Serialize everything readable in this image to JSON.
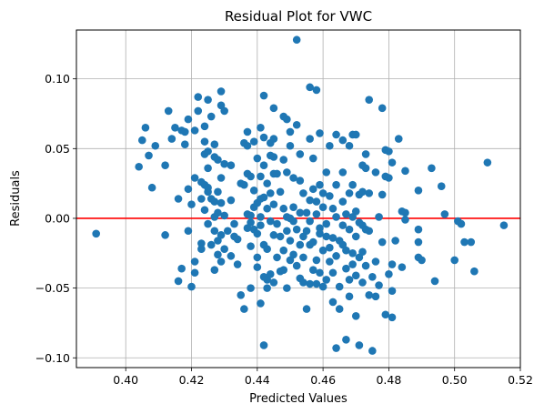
{
  "chart_data": {
    "type": "scatter",
    "title": "Residual Plot for VWC",
    "xlabel": "Predicted Values",
    "ylabel": "Residuals",
    "xlim": [
      0.385,
      0.52
    ],
    "ylim": [
      -0.107,
      0.135
    ],
    "xticks": [
      0.4,
      0.42,
      0.44,
      0.46,
      0.48,
      0.5,
      0.52
    ],
    "xtick_labels": [
      "0.40",
      "0.42",
      "0.44",
      "0.46",
      "0.48",
      "0.50",
      "0.52"
    ],
    "yticks": [
      -0.1,
      -0.05,
      0.0,
      0.05,
      0.1
    ],
    "ytick_labels": [
      "−0.10",
      "−0.05",
      "0.00",
      "0.05",
      "0.10"
    ],
    "grid": true,
    "point_color": "#1f77b4",
    "reference_line": {
      "y": 0.0,
      "color": "#ff0000"
    },
    "series": [
      {
        "points": [
          [
            0.391,
            -0.011
          ],
          [
            0.404,
            0.037
          ],
          [
            0.405,
            0.056
          ],
          [
            0.406,
            0.065
          ],
          [
            0.407,
            0.045
          ],
          [
            0.408,
            0.022
          ],
          [
            0.409,
            0.052
          ],
          [
            0.412,
            0.038
          ],
          [
            0.412,
            -0.012
          ],
          [
            0.413,
            0.077
          ],
          [
            0.414,
            0.057
          ],
          [
            0.415,
            0.065
          ],
          [
            0.416,
            -0.045
          ],
          [
            0.416,
            0.014
          ],
          [
            0.417,
            0.063
          ],
          [
            0.417,
            -0.036
          ],
          [
            0.418,
            0.053
          ],
          [
            0.418,
            0.062
          ],
          [
            0.419,
            0.071
          ],
          [
            0.419,
            0.021
          ],
          [
            0.419,
            -0.009
          ],
          [
            0.42,
            0.01
          ],
          [
            0.42,
            -0.049
          ],
          [
            0.421,
            0.063
          ],
          [
            0.421,
            -0.039
          ],
          [
            0.421,
            -0.031
          ],
          [
            0.421,
            0.029
          ],
          [
            0.422,
            0.087
          ],
          [
            0.422,
            0.077
          ],
          [
            0.423,
            0.026
          ],
          [
            0.423,
            0.014
          ],
          [
            0.423,
            -0.018
          ],
          [
            0.423,
            -0.022
          ],
          [
            0.424,
            0.066
          ],
          [
            0.424,
            0.046
          ],
          [
            0.424,
            0.006
          ],
          [
            0.424,
            0.055
          ],
          [
            0.424,
            0.024
          ],
          [
            0.425,
            0.085
          ],
          [
            0.425,
            0.048
          ],
          [
            0.425,
            0.036
          ],
          [
            0.425,
            0.019
          ],
          [
            0.425,
            -0.004
          ],
          [
            0.425,
            0.022
          ],
          [
            0.426,
            0.073
          ],
          [
            0.426,
            0.014
          ],
          [
            0.426,
            -0.019
          ],
          [
            0.427,
            0.053
          ],
          [
            0.427,
            -0.009
          ],
          [
            0.427,
            -0.037
          ],
          [
            0.427,
            0.044
          ],
          [
            0.427,
            0.012
          ],
          [
            0.427,
            0.001
          ],
          [
            0.428,
            -0.026
          ],
          [
            0.428,
            0.042
          ],
          [
            0.428,
            0.019
          ],
          [
            0.428,
            -0.016
          ],
          [
            0.428,
            0.004
          ],
          [
            0.429,
            0.091
          ],
          [
            0.429,
            0.081
          ],
          [
            0.429,
            0.029
          ],
          [
            0.429,
            -0.031
          ],
          [
            0.429,
            0.011
          ],
          [
            0.429,
            -0.012
          ],
          [
            0.43,
            0.077
          ],
          [
            0.43,
            0.039
          ],
          [
            0.43,
            -0.022
          ],
          [
            0.43,
            0.002
          ],
          [
            0.431,
            -0.009
          ],
          [
            0.432,
            0.038
          ],
          [
            0.432,
            0.013
          ],
          [
            0.432,
            -0.027
          ],
          [
            0.433,
            -0.004
          ],
          [
            0.433,
            -0.013
          ],
          [
            0.434,
            -0.033
          ],
          [
            0.434,
            -0.015
          ],
          [
            0.435,
            0.025
          ],
          [
            0.435,
            -0.055
          ],
          [
            0.436,
            0.054
          ],
          [
            0.436,
            -0.065
          ],
          [
            0.436,
            0.024
          ],
          [
            0.437,
            -0.007
          ],
          [
            0.437,
            0.062
          ],
          [
            0.437,
            0.052
          ],
          [
            0.437,
            0.032
          ],
          [
            0.437,
            0.003
          ],
          [
            0.438,
            0.03
          ],
          [
            0.438,
            -0.02
          ],
          [
            0.438,
            -0.003
          ],
          [
            0.438,
            0.002
          ],
          [
            0.438,
            -0.05
          ],
          [
            0.439,
            0.055
          ],
          [
            0.439,
            0.02
          ],
          [
            0.439,
            0.008
          ],
          [
            0.439,
            -0.008
          ],
          [
            0.44,
            0.043
          ],
          [
            0.44,
            0.011
          ],
          [
            0.44,
            -0.028
          ],
          [
            0.44,
            -0.035
          ],
          [
            0.44,
            -0.011
          ],
          [
            0.441,
            0.065
          ],
          [
            0.441,
            0.03
          ],
          [
            0.441,
            0.014
          ],
          [
            0.441,
            0.001
          ],
          [
            0.441,
            -0.061
          ],
          [
            0.441,
            -0.005
          ],
          [
            0.442,
            0.088
          ],
          [
            0.442,
            -0.091
          ],
          [
            0.442,
            0.058
          ],
          [
            0.442,
            0.038
          ],
          [
            0.442,
            -0.042
          ],
          [
            0.442,
            0.015
          ],
          [
            0.442,
            -0.019
          ],
          [
            0.443,
            0.025
          ],
          [
            0.443,
            0.007
          ],
          [
            0.443,
            -0.05
          ],
          [
            0.443,
            -0.022
          ],
          [
            0.443,
            -0.044
          ],
          [
            0.444,
            0.054
          ],
          [
            0.444,
            0.045
          ],
          [
            0.444,
            0.018
          ],
          [
            0.444,
            -0.002
          ],
          [
            0.444,
            -0.04
          ],
          [
            0.445,
            0.079
          ],
          [
            0.445,
            0.057
          ],
          [
            0.445,
            0.044
          ],
          [
            0.445,
            0.032
          ],
          [
            0.445,
            0.01
          ],
          [
            0.445,
            -0.012
          ],
          [
            0.445,
            -0.046
          ],
          [
            0.446,
            0.032
          ],
          [
            0.446,
            -0.028
          ],
          [
            0.446,
            -0.004
          ],
          [
            0.447,
            0.019
          ],
          [
            0.447,
            -0.013
          ],
          [
            0.447,
            -0.038
          ],
          [
            0.448,
            0.073
          ],
          [
            0.448,
            0.042
          ],
          [
            0.448,
            0.007
          ],
          [
            0.448,
            -0.023
          ],
          [
            0.448,
            -0.037
          ],
          [
            0.449,
            0.071
          ],
          [
            0.449,
            0.033
          ],
          [
            0.449,
            0.001
          ],
          [
            0.449,
            -0.009
          ],
          [
            0.449,
            -0.05
          ],
          [
            0.45,
            0.062
          ],
          [
            0.45,
            0.052
          ],
          [
            0.45,
            0.0
          ],
          [
            0.45,
            -0.016
          ],
          [
            0.45,
            -0.03
          ],
          [
            0.451,
            0.029
          ],
          [
            0.451,
            0.008
          ],
          [
            0.451,
            -0.002
          ],
          [
            0.451,
            -0.026
          ],
          [
            0.452,
            0.128
          ],
          [
            0.452,
            0.067
          ],
          [
            0.452,
            -0.008
          ],
          [
            0.452,
            -0.034
          ],
          [
            0.453,
            0.046
          ],
          [
            0.453,
            0.027
          ],
          [
            0.453,
            0.004
          ],
          [
            0.453,
            -0.019
          ],
          [
            0.453,
            -0.043
          ],
          [
            0.454,
            0.018
          ],
          [
            0.454,
            -0.013
          ],
          [
            0.454,
            -0.028
          ],
          [
            0.454,
            -0.046
          ],
          [
            0.455,
            0.004
          ],
          [
            0.455,
            -0.009
          ],
          [
            0.455,
            -0.065
          ],
          [
            0.456,
            0.094
          ],
          [
            0.456,
            0.057
          ],
          [
            0.456,
            0.013
          ],
          [
            0.456,
            -0.002
          ],
          [
            0.456,
            -0.019
          ],
          [
            0.456,
            -0.047
          ],
          [
            0.457,
            0.043
          ],
          [
            0.457,
            0.021
          ],
          [
            0.457,
            -0.037
          ],
          [
            0.457,
            -0.017
          ],
          [
            0.458,
            0.092
          ],
          [
            0.458,
            0.012
          ],
          [
            0.458,
            0.003
          ],
          [
            0.458,
            -0.03
          ],
          [
            0.458,
            -0.047
          ],
          [
            0.459,
            0.061
          ],
          [
            0.459,
            0.024
          ],
          [
            0.459,
            -0.007
          ],
          [
            0.459,
            -0.011
          ],
          [
            0.459,
            -0.039
          ],
          [
            0.46,
            0.018
          ],
          [
            0.46,
            0.008
          ],
          [
            0.46,
            -0.023
          ],
          [
            0.46,
            -0.049
          ],
          [
            0.461,
            0.033
          ],
          [
            0.461,
            -0.004
          ],
          [
            0.461,
            -0.013
          ],
          [
            0.461,
            -0.044
          ],
          [
            0.462,
            0.052
          ],
          [
            0.462,
            0.016
          ],
          [
            0.462,
            -0.021
          ],
          [
            0.462,
            -0.031
          ],
          [
            0.463,
            0.007
          ],
          [
            0.463,
            -0.014
          ],
          [
            0.463,
            -0.039
          ],
          [
            0.463,
            -0.06
          ],
          [
            0.464,
            0.06
          ],
          [
            0.464,
            0.024
          ],
          [
            0.464,
            0.001
          ],
          [
            0.464,
            -0.027
          ],
          [
            0.464,
            -0.093
          ],
          [
            0.465,
            -0.016
          ],
          [
            0.465,
            -0.049
          ],
          [
            0.465,
            -0.065
          ],
          [
            0.466,
            0.056
          ],
          [
            0.466,
            0.033
          ],
          [
            0.466,
            0.012
          ],
          [
            0.466,
            -0.005
          ],
          [
            0.466,
            -0.019
          ],
          [
            0.467,
            0.003
          ],
          [
            0.467,
            -0.023
          ],
          [
            0.467,
            -0.036
          ],
          [
            0.467,
            -0.087
          ],
          [
            0.468,
            0.052
          ],
          [
            0.468,
            0.018
          ],
          [
            0.468,
            -0.008
          ],
          [
            0.468,
            -0.044
          ],
          [
            0.468,
            -0.056
          ],
          [
            0.469,
            0.06
          ],
          [
            0.469,
            0.024
          ],
          [
            0.469,
            0.001
          ],
          [
            0.469,
            -0.025
          ],
          [
            0.469,
            -0.033
          ],
          [
            0.47,
            0.06
          ],
          [
            0.47,
            0.005
          ],
          [
            0.47,
            -0.013
          ],
          [
            0.47,
            -0.041
          ],
          [
            0.47,
            -0.07
          ],
          [
            0.471,
            -0.091
          ],
          [
            0.471,
            0.017
          ],
          [
            0.471,
            -0.003
          ],
          [
            0.471,
            -0.028
          ],
          [
            0.472,
            0.038
          ],
          [
            0.472,
            0.019
          ],
          [
            0.472,
            -0.005
          ],
          [
            0.472,
            -0.024
          ],
          [
            0.472,
            -0.046
          ],
          [
            0.473,
            0.046
          ],
          [
            0.473,
            0.036
          ],
          [
            0.473,
            -0.008
          ],
          [
            0.473,
            -0.034
          ],
          [
            0.474,
            0.085
          ],
          [
            0.474,
            0.018
          ],
          [
            0.474,
            -0.009
          ],
          [
            0.474,
            -0.055
          ],
          [
            0.475,
            -0.095
          ],
          [
            0.475,
            -0.042
          ],
          [
            0.476,
            0.033
          ],
          [
            0.476,
            -0.031
          ],
          [
            0.476,
            -0.056
          ],
          [
            0.477,
            0.001
          ],
          [
            0.477,
            -0.048
          ],
          [
            0.478,
            0.079
          ],
          [
            0.478,
            0.017
          ],
          [
            0.478,
            -0.017
          ],
          [
            0.479,
            -0.069
          ],
          [
            0.479,
            0.049
          ],
          [
            0.479,
            0.03
          ],
          [
            0.48,
            0.048
          ],
          [
            0.48,
            0.029
          ],
          [
            0.48,
            -0.04
          ],
          [
            0.481,
            -0.071
          ],
          [
            0.481,
            0.04
          ],
          [
            0.481,
            -0.033
          ],
          [
            0.481,
            -0.052
          ],
          [
            0.482,
            -0.016
          ],
          [
            0.483,
            0.057
          ],
          [
            0.484,
            0.005
          ],
          [
            0.484,
            -0.035
          ],
          [
            0.485,
            0.034
          ],
          [
            0.485,
            0.004
          ],
          [
            0.485,
            -0.001
          ],
          [
            0.489,
            0.02
          ],
          [
            0.489,
            -0.008
          ],
          [
            0.489,
            -0.017
          ],
          [
            0.489,
            -0.028
          ],
          [
            0.49,
            -0.03
          ],
          [
            0.493,
            0.036
          ],
          [
            0.494,
            -0.045
          ],
          [
            0.496,
            0.023
          ],
          [
            0.497,
            0.003
          ],
          [
            0.5,
            -0.03
          ],
          [
            0.501,
            -0.002
          ],
          [
            0.502,
            -0.004
          ],
          [
            0.503,
            -0.017
          ],
          [
            0.505,
            -0.017
          ],
          [
            0.506,
            -0.038
          ],
          [
            0.51,
            0.04
          ],
          [
            0.515,
            -0.005
          ]
        ]
      }
    ]
  }
}
